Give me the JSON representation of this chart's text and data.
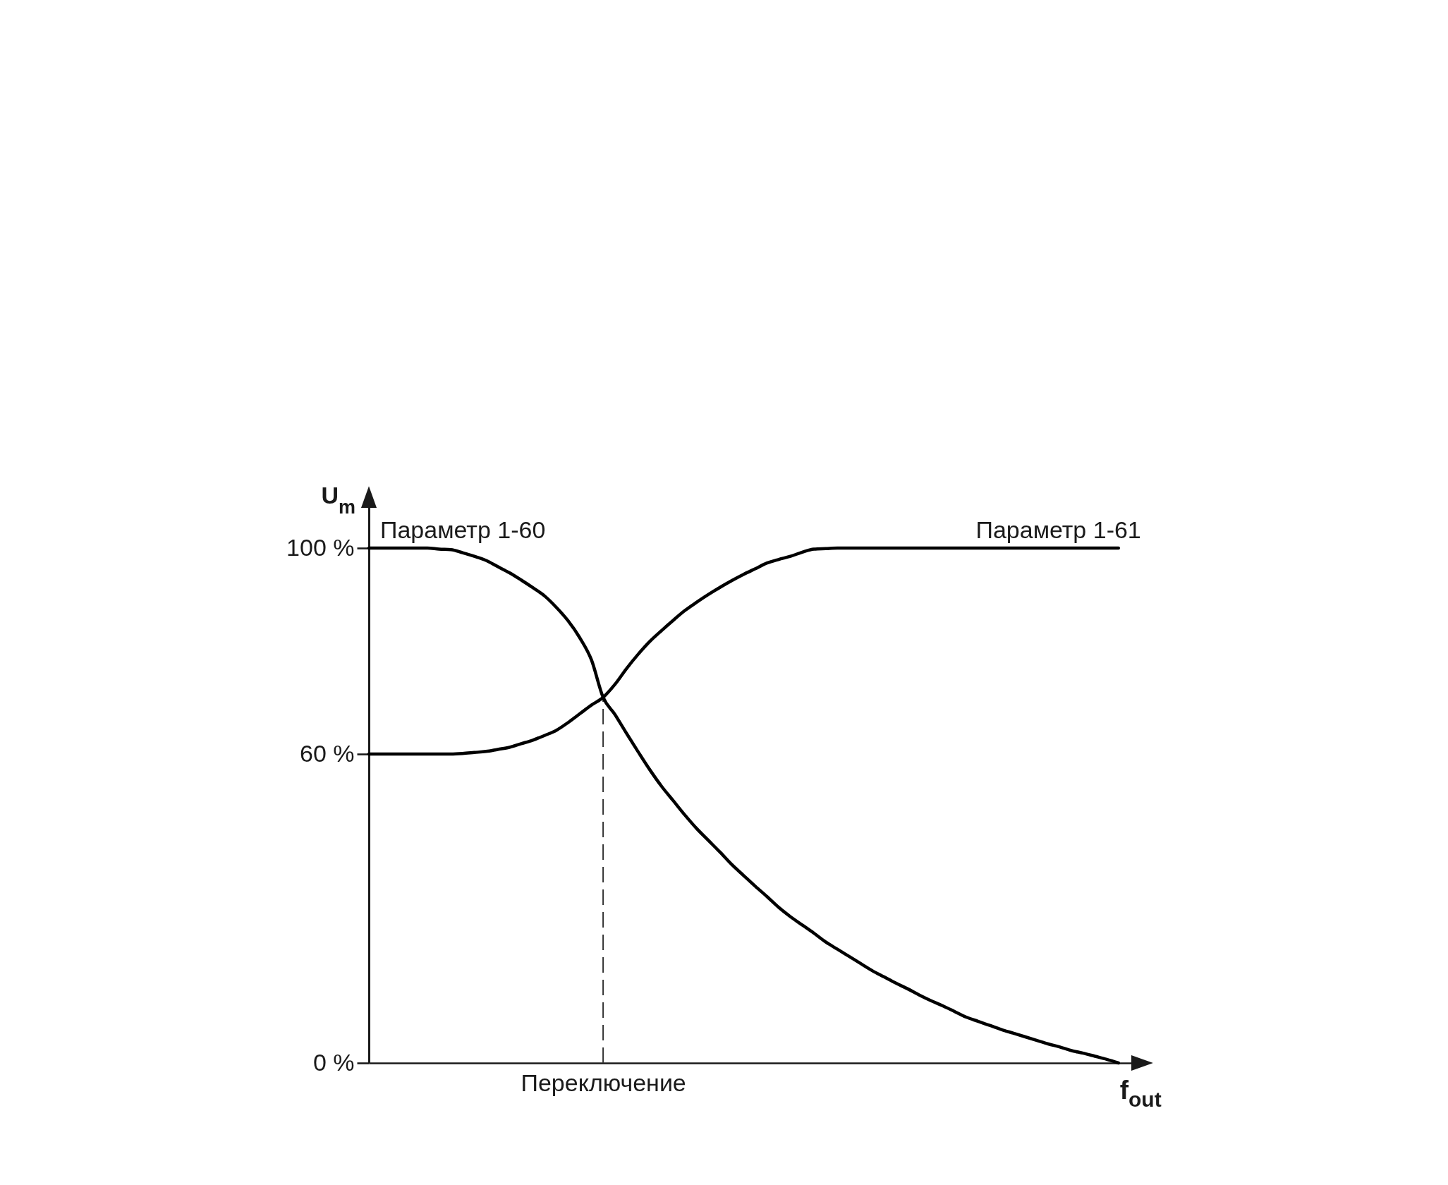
{
  "chart_data": {
    "type": "line",
    "xlabel": "f$_{out}$",
    "ylabel": "U$_{m}$",
    "categories": [
      null,
      null,
      null,
      null,
      null,
      null,
      null,
      null,
      null,
      null,
      null,
      null,
      null,
      null,
      null,
      null,
      null,
      null,
      null,
      null,
      "Переключение",
      null,
      null,
      null,
      null,
      null,
      null,
      null,
      null,
      null,
      null,
      null,
      null,
      null,
      null,
      null,
      null,
      null,
      null,
      null,
      null,
      null,
      null,
      null,
      null,
      null,
      null,
      null,
      null,
      null,
      null,
      null,
      null,
      null,
      null,
      null,
      null,
      null,
      null,
      null,
      null,
      null,
      null,
      null,
      null,
      null,
      null
    ],
    "ylim": [
      0,
      110
    ],
    "yticks": [
      {
        "value": 0,
        "label": "0 %"
      },
      {
        "value": 60,
        "label": "60 %"
      },
      {
        "value": 100,
        "label": "100 %"
      }
    ],
    "grid": false,
    "line_style": "solid",
    "series": [
      {
        "name": "Параметр 1-60",
        "color": "#000000",
        "values": [
          100,
          100,
          100,
          100,
          100,
          100,
          99.8,
          99.7,
          99.1,
          98.4,
          97.6,
          96.4,
          95.2,
          93.8,
          92.3,
          90.7,
          88.5,
          85.9,
          82.6,
          78.3,
          71,
          67.7,
          64.0,
          60.4,
          56.9,
          53.7,
          50.9,
          48.1,
          45.5,
          43.2,
          40.9,
          38.5,
          36.4,
          34.3,
          32.3,
          30.2,
          28.4,
          26.8,
          25.2,
          23.5,
          22.1,
          20.7,
          19.3,
          17.9,
          16.7,
          15.5,
          14.4,
          13.2,
          12.1,
          11.1,
          10.0,
          8.9,
          8.1,
          7.3,
          6.5,
          5.8,
          5.1,
          4.4,
          3.7,
          3.1,
          2.4,
          1.9,
          1.3,
          0.7,
          0,
          null,
          null
        ]
      },
      {
        "name": "Параметр 1-61",
        "color": "#000000",
        "values": [
          60,
          60,
          60,
          60,
          60,
          60,
          60,
          60,
          60.1,
          60.3,
          60.5,
          60.9,
          61.3,
          62.0,
          62.7,
          63.6,
          64.6,
          66.1,
          67.8,
          69.5,
          71,
          73.5,
          76.6,
          79.4,
          81.9,
          84.0,
          86.0,
          87.9,
          89.5,
          91.0,
          92.4,
          93.7,
          94.9,
          96.0,
          97.1,
          97.8,
          98.4,
          99.2,
          99.8,
          99.9,
          100,
          100,
          100,
          100,
          100,
          100,
          100,
          100,
          100,
          100,
          100,
          100,
          100,
          100,
          100,
          100,
          100,
          100,
          100,
          100,
          100,
          100,
          100,
          100,
          100,
          null,
          null
        ]
      }
    ],
    "ref_lines": [
      {
        "axis": "x",
        "value": "Переключение",
        "line_style": "dashed",
        "color": "#333333"
      }
    ]
  }
}
